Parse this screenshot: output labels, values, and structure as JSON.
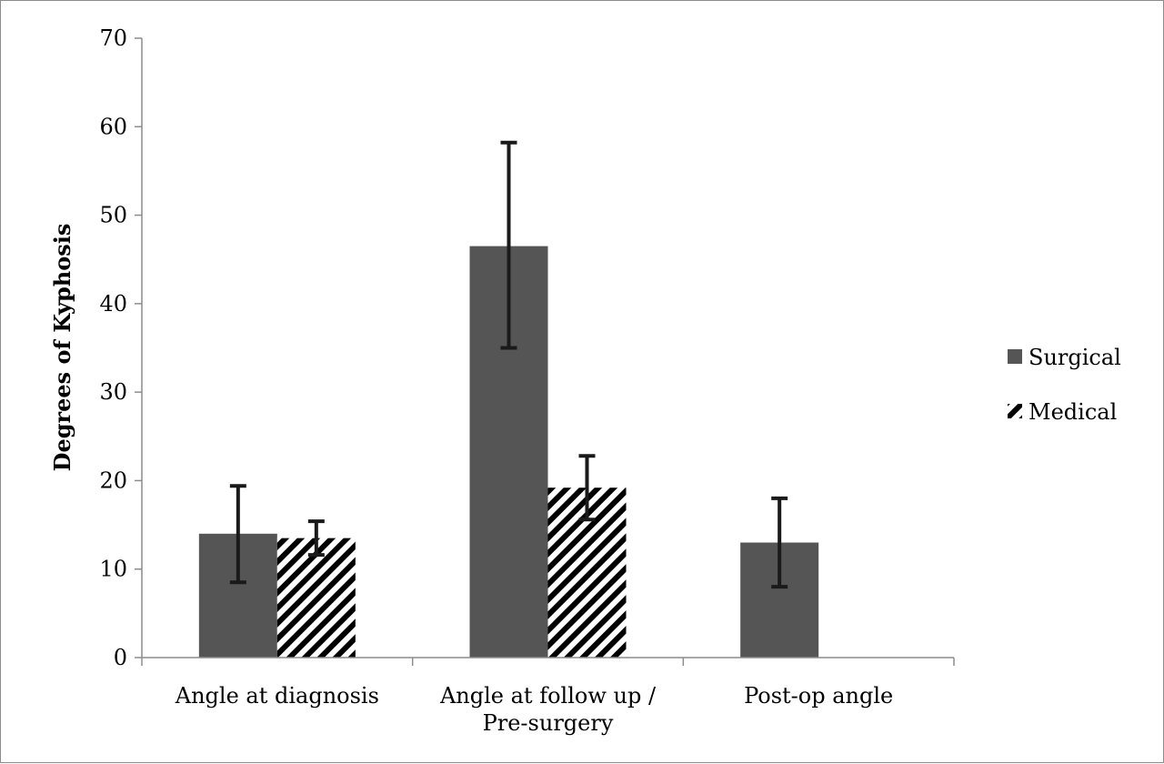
{
  "chart_data": {
    "type": "bar",
    "title": "",
    "xlabel": "",
    "ylabel": "Degrees of Kyphosis",
    "ylim": [
      0,
      70
    ],
    "yticks": [
      0,
      10,
      20,
      30,
      40,
      50,
      60,
      70
    ],
    "categories": [
      [
        "Angle at diagnosis"
      ],
      [
        "Angle at follow up /",
        "Pre-surgery"
      ],
      [
        "Post-op angle"
      ]
    ],
    "series": [
      {
        "name": "Surgical",
        "color": "#555555",
        "fill": "solid",
        "values": [
          14,
          46.5,
          13
        ],
        "error_low": [
          8.5,
          35,
          8
        ],
        "error_high": [
          19.4,
          58.2,
          18
        ]
      },
      {
        "name": "Medical",
        "color": "#000000",
        "fill": "diagonal-stripes",
        "values": [
          13.5,
          19.2,
          null
        ],
        "error_low": [
          11.6,
          15.6,
          null
        ],
        "error_high": [
          15.4,
          22.8,
          null
        ]
      }
    ],
    "legend": "right",
    "grid": false
  }
}
